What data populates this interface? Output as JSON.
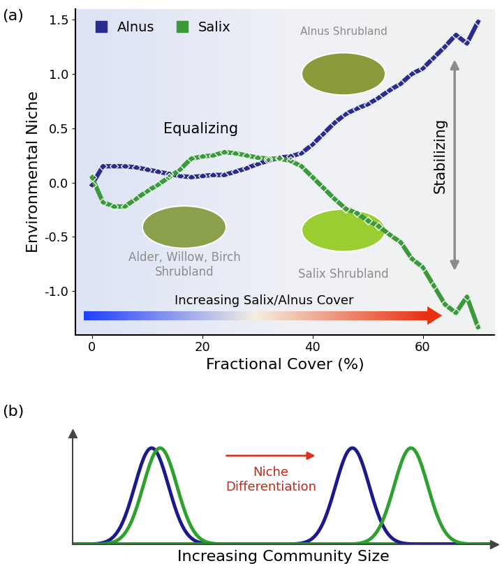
{
  "chart_data": [
    {
      "type": "line",
      "panel": "(a)",
      "xlabel": "Fractional Cover (%)",
      "ylabel": "Environmental Niche",
      "x": [
        0,
        2,
        4,
        6,
        8,
        10,
        12,
        14,
        16,
        18,
        20,
        22,
        24,
        26,
        28,
        30,
        32,
        34,
        36,
        38,
        40,
        42,
        44,
        46,
        48,
        50,
        52,
        54,
        56,
        58,
        60,
        62,
        64,
        66,
        68,
        70
      ],
      "series": [
        {
          "name": "Alnus",
          "color": "#2b2b8f",
          "marker": "diamond",
          "values": [
            -0.02,
            0.15,
            0.15,
            0.15,
            0.14,
            0.12,
            0.1,
            0.08,
            0.06,
            0.05,
            0.06,
            0.07,
            0.07,
            0.1,
            0.13,
            0.17,
            0.2,
            0.23,
            0.24,
            0.27,
            0.35,
            0.45,
            0.55,
            0.63,
            0.68,
            0.72,
            0.78,
            0.85,
            0.91,
            1.0,
            1.05,
            1.15,
            1.25,
            1.36,
            1.28,
            1.48
          ]
        },
        {
          "name": "Salix",
          "color": "#3a9a3a",
          "marker": "diamond",
          "values": [
            0.05,
            -0.18,
            -0.22,
            -0.22,
            -0.15,
            -0.08,
            -0.02,
            0.05,
            0.12,
            0.22,
            0.24,
            0.25,
            0.28,
            0.27,
            0.25,
            0.23,
            0.22,
            0.22,
            0.2,
            0.15,
            0.05,
            -0.05,
            -0.15,
            -0.24,
            -0.28,
            -0.35,
            -0.4,
            -0.48,
            -0.55,
            -0.7,
            -0.78,
            -0.95,
            -1.12,
            -1.2,
            -1.05,
            -1.33
          ]
        }
      ],
      "xlim": [
        -3,
        73
      ],
      "xticks": [
        0,
        20,
        40,
        60
      ],
      "ylim": [
        -1.4,
        1.6
      ],
      "yticks": [
        {
          "value": -1.0,
          "label": "-1.0"
        },
        {
          "value": -0.5,
          "label": "-0.5"
        },
        {
          "value": 0.0,
          "label": "0.0"
        },
        {
          "value": 0.5,
          "label": "0.5"
        },
        {
          "value": 1.0,
          "label": "1.0"
        },
        {
          "value": 1.5,
          "label": "1.5"
        }
      ],
      "legend": "upper left",
      "grid": false,
      "annotations": {
        "equalizing": "Equalizing",
        "stabilizing": "Stabilizing",
        "alnus_photo": "Alnus Shrubland",
        "mixed_photo": "Alder, Willow, Birch\nShrubland",
        "salix_photo": "Salix Shrubland",
        "gradient_arrow": "Increasing Salix/Alnus Cover"
      }
    },
    {
      "type": "density",
      "panel": "(b)",
      "xlabel": "Increasing Community Size",
      "annotation": "Niche\nDifferentiation",
      "tick_labels": false,
      "xlim": [
        0,
        10
      ],
      "ylim": [
        0,
        1.15
      ],
      "series": [
        {
          "color": "#1a1a8c",
          "mean": 1.87,
          "sd": 0.4
        },
        {
          "color": "#2ea02e",
          "mean": 2.07,
          "sd": 0.4
        },
        {
          "color": "#1a1a8c",
          "mean": 6.63,
          "sd": 0.4
        },
        {
          "color": "#2ea02e",
          "mean": 8.02,
          "sd": 0.4
        }
      ]
    }
  ]
}
